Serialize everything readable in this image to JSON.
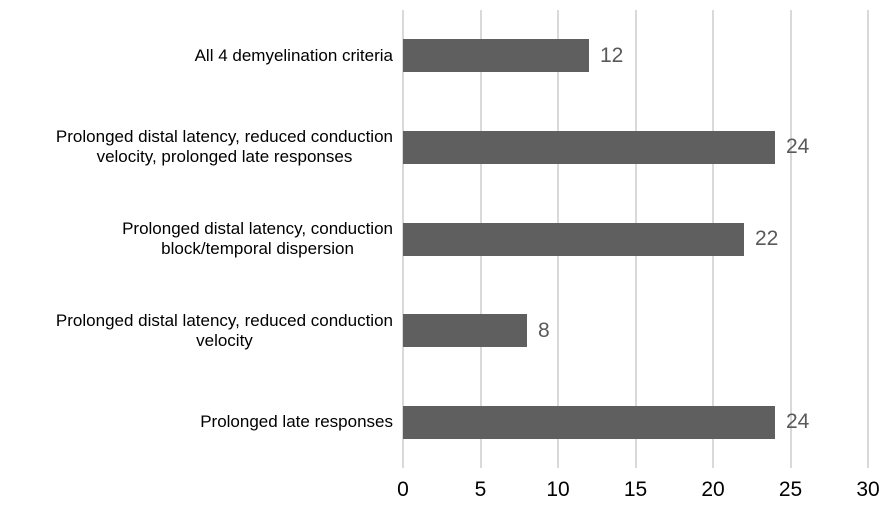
{
  "chart_data": {
    "type": "bar",
    "orientation": "horizontal",
    "title": "",
    "xlabel": "",
    "ylabel": "",
    "categories": [
      "All 4 demyelination criteria",
      "Prolonged distal latency, reduced conduction\nvelocity, prolonged late responses",
      "Prolonged distal latency, conduction\nblock/temporal dispersion",
      "Prolonged distal latency, reduced conduction\nvelocity",
      "Prolonged late responses"
    ],
    "values": [
      12,
      24,
      22,
      8,
      24
    ],
    "data_labels": [
      "12",
      "24",
      "22",
      "8",
      "24"
    ],
    "xlim": [
      0,
      30
    ],
    "x_ticks": [
      "0",
      "5",
      "10",
      "15",
      "20",
      "25",
      "30"
    ],
    "grid": "vertical-only",
    "legend": "none",
    "colors": {
      "bar": "#5f5f5f",
      "gridline": "#d9d9d9",
      "value_label": "#595959",
      "tick_label": "#000000",
      "category_label": "#000000",
      "background": "#ffffff"
    }
  }
}
